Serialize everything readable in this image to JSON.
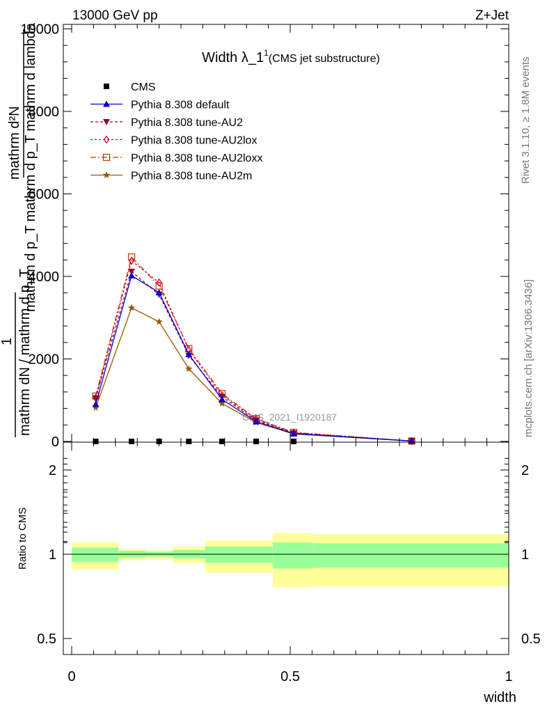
{
  "header": {
    "left": "13000 GeV pp",
    "right": "Z+Jet"
  },
  "side": {
    "rivet": "Rivet 3.1.10, ≥ 1.8M events",
    "mcplots": "mcplots.cern.ch [arXiv:1306.3436]"
  },
  "chart_data": [
    {
      "type": "line",
      "title_main": "Width λ_1",
      "title_sup": "1",
      "title_sub": "(CMS jet substructure)",
      "watermark": "CMS_2021_I1920187",
      "ylabel_top_numerator": "mathrm d²N",
      "ylabel_top_denominator": "mathrm d p_T mathrm d p_T mathrm d lambda",
      "ylabel_bottom_numerator": "1",
      "ylabel_bottom_denominator": "mathrm dN / mathrm d p_T",
      "ylim": [
        0,
        10000
      ],
      "xlim": [
        0,
        1
      ],
      "yticks": [
        {
          "v": 0,
          "label": "0"
        },
        {
          "v": 2000,
          "label": "2000"
        },
        {
          "v": 4000,
          "label": "4000"
        },
        {
          "v": 6000,
          "label": "6000"
        },
        {
          "v": 8000,
          "label": "8000"
        },
        {
          "v": 10000,
          "label": "10000"
        }
      ],
      "legend": [
        "CMS",
        "Pythia 8.308 default",
        "Pythia 8.308 tune-AU2",
        "Pythia 8.308 tune-AU2lox",
        "Pythia 8.308 tune-AU2loxx",
        "Pythia 8.308 tune-AU2m"
      ],
      "series": [
        {
          "name": "CMS",
          "color": "#000000",
          "marker": "square",
          "dash": "none",
          "x": [
            0.055,
            0.137,
            0.2,
            0.268,
            0.344,
            0.422,
            0.508
          ],
          "y": [
            0,
            0,
            0,
            0,
            0,
            0,
            0
          ]
        },
        {
          "name": "Pythia 8.308 default",
          "color": "#0000cc",
          "marker": "triangle-up",
          "dash": "none",
          "x": [
            0.055,
            0.137,
            0.2,
            0.268,
            0.344,
            0.422,
            0.508,
            0.778
          ],
          "y": [
            900,
            4020,
            3610,
            2110,
            1020,
            480,
            190,
            10
          ]
        },
        {
          "name": "Pythia 8.308 tune-AU2",
          "color": "#990033",
          "marker": "triangle-down",
          "dash": "4,3",
          "x": [
            0.055,
            0.137,
            0.2,
            0.268,
            0.344,
            0.422,
            0.508,
            0.778
          ],
          "y": [
            1050,
            4120,
            3560,
            2080,
            1080,
            510,
            200,
            10
          ]
        },
        {
          "name": "Pythia 8.308 tune-AU2lox",
          "color": "#cc0033",
          "marker": "diamond-open",
          "dash": "3,3",
          "x": [
            0.055,
            0.137,
            0.2,
            0.268,
            0.344,
            0.422,
            0.508,
            0.778
          ],
          "y": [
            1060,
            4380,
            3850,
            2220,
            1120,
            540,
            210,
            10
          ]
        },
        {
          "name": "Pythia 8.308 tune-AU2loxx",
          "color": "#cc3300",
          "marker": "square-open",
          "dash": "8,3,2,3",
          "x": [
            0.055,
            0.137,
            0.2,
            0.268,
            0.344,
            0.422,
            0.508,
            0.778
          ],
          "y": [
            1100,
            4470,
            3770,
            2250,
            1160,
            550,
            220,
            10
          ]
        },
        {
          "name": "Pythia 8.308 tune-AU2m",
          "color": "#995500",
          "marker": "star",
          "dash": "none",
          "x": [
            0.055,
            0.137,
            0.2,
            0.268,
            0.344,
            0.422,
            0.508,
            0.778
          ],
          "y": [
            820,
            3240,
            2900,
            1760,
            920,
            460,
            180,
            10
          ]
        }
      ]
    },
    {
      "type": "area",
      "ylabel": "Ratio to CMS",
      "xlabel": "width",
      "ylim": [
        0.3,
        2.3
      ],
      "xlim": [
        0,
        1
      ],
      "yticks": [
        {
          "v": 0.5,
          "label": "0.5"
        },
        {
          "v": 1,
          "label": "1"
        },
        {
          "v": 2,
          "label": "2"
        }
      ],
      "xticks": [
        {
          "v": 0,
          "label": "0"
        },
        {
          "v": 0.5,
          "label": "0.5"
        },
        {
          "v": 1,
          "label": "1"
        }
      ],
      "bands": {
        "outer_color": "#ffff99",
        "inner_color": "#99ff99",
        "bins": [
          {
            "x0": 0.0,
            "x1": 0.107,
            "o_lo": 0.82,
            "o_hi": 1.14,
            "i_lo": 0.91,
            "i_hi": 1.08
          },
          {
            "x0": 0.107,
            "x1": 0.168,
            "o_lo": 0.93,
            "o_hi": 1.06,
            "i_lo": 0.96,
            "i_hi": 1.04
          },
          {
            "x0": 0.168,
            "x1": 0.232,
            "o_lo": 0.94,
            "o_hi": 1.05,
            "i_lo": 0.97,
            "i_hi": 1.03
          },
          {
            "x0": 0.232,
            "x1": 0.305,
            "o_lo": 0.9,
            "o_hi": 1.09,
            "i_lo": 0.95,
            "i_hi": 1.05
          },
          {
            "x0": 0.305,
            "x1": 0.46,
            "o_lo": 0.78,
            "o_hi": 1.16,
            "i_lo": 0.9,
            "i_hi": 1.09
          },
          {
            "x0": 0.46,
            "x1": 0.552,
            "o_lo": 0.61,
            "o_hi": 1.25,
            "i_lo": 0.83,
            "i_hi": 1.14
          },
          {
            "x0": 0.552,
            "x1": 1.0,
            "o_lo": 0.62,
            "o_hi": 1.24,
            "i_lo": 0.84,
            "i_hi": 1.13
          }
        ]
      },
      "reference": 1
    }
  ]
}
